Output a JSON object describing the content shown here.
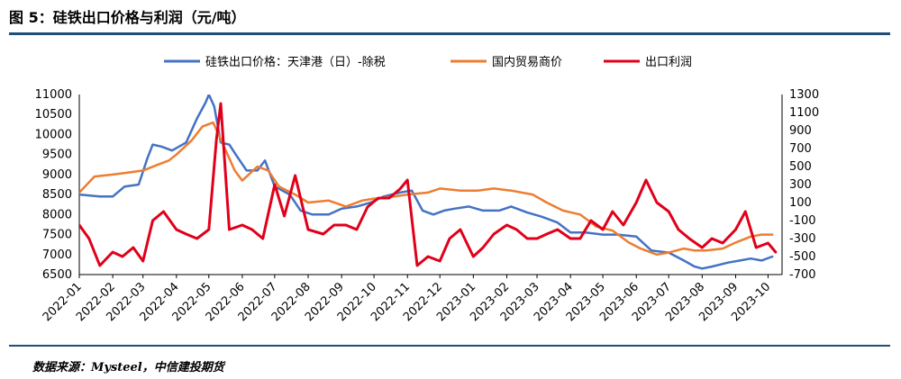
{
  "header": {
    "title": "图 5：硅铁出口价格与利润（元/吨）"
  },
  "footer": {
    "source": "数据来源：Mysteel，中信建投期货"
  },
  "colors": {
    "rule": "#1f4e79",
    "export_price": "#4472c4",
    "domestic_price": "#ed7d31",
    "profit": "#e0001a"
  },
  "chart_data": {
    "type": "line",
    "x_tick_labels": [
      "2022-01",
      "2022-02",
      "2022-03",
      "2022-04",
      "2022-05",
      "2022-06",
      "2022-07",
      "2022-08",
      "2022-09",
      "2022-10",
      "2022-11",
      "2022-12",
      "2023-01",
      "2023-02",
      "2023-03",
      "2023-04",
      "2023-05",
      "2023-06",
      "2023-07",
      "2023-08",
      "2023-09",
      "2023-10"
    ],
    "left_axis": {
      "range": [
        6500,
        11000
      ],
      "ticks": [
        "11000",
        "10500",
        "10000",
        "9500",
        "9000",
        "8500",
        "8000",
        "7500",
        "7000",
        "6500"
      ]
    },
    "right_axis": {
      "range": [
        -700,
        1300
      ],
      "ticks": [
        "1300",
        "1100",
        "900",
        "700",
        "500",
        "300",
        "100",
        "-100",
        "-300",
        "-500",
        "-700"
      ]
    },
    "series": [
      {
        "name": "硅铁出口价格：天津港（日）-除税",
        "axis": "left",
        "x": [
          "2022-01-01",
          "2022-01-20",
          "2022-02-01",
          "2022-02-12",
          "2022-02-25",
          "2022-03-05",
          "2022-03-10",
          "2022-03-18",
          "2022-03-28",
          "2022-04-10",
          "2022-04-20",
          "2022-04-28",
          "2022-05-01",
          "2022-05-06",
          "2022-05-12",
          "2022-05-20",
          "2022-05-26",
          "2022-06-05",
          "2022-06-15",
          "2022-06-22",
          "2022-07-01",
          "2022-07-15",
          "2022-07-25",
          "2022-08-05",
          "2022-08-20",
          "2022-09-01",
          "2022-09-15",
          "2022-09-28",
          "2022-10-10",
          "2022-10-25",
          "2022-11-05",
          "2022-11-15",
          "2022-11-25",
          "2022-12-05",
          "2022-12-15",
          "2022-12-28",
          "2023-01-10",
          "2023-01-25",
          "2023-02-05",
          "2023-02-20",
          "2023-03-05",
          "2023-03-20",
          "2023-04-01",
          "2023-04-15",
          "2023-05-01",
          "2023-05-15",
          "2023-06-01",
          "2023-06-15",
          "2023-07-01",
          "2023-07-15",
          "2023-07-25",
          "2023-08-01",
          "2023-08-10",
          "2023-08-25",
          "2023-09-05",
          "2023-09-15",
          "2023-09-25",
          "2023-10-05"
        ],
        "y": [
          8500,
          8450,
          8450,
          8700,
          8750,
          9400,
          9750,
          9700,
          9600,
          9800,
          10400,
          10800,
          11000,
          10700,
          9800,
          9750,
          9500,
          9100,
          9100,
          9350,
          8700,
          8500,
          8100,
          8000,
          8000,
          8150,
          8200,
          8300,
          8450,
          8550,
          8600,
          8100,
          8000,
          8100,
          8150,
          8200,
          8100,
          8100,
          8200,
          8050,
          7950,
          7800,
          7550,
          7550,
          7500,
          7500,
          7450,
          7100,
          7050,
          6850,
          6700,
          6650,
          6700,
          6800,
          6850,
          6900,
          6850,
          6950
        ]
      },
      {
        "name": "国内贸易商价",
        "axis": "left",
        "x": [
          "2022-01-01",
          "2022-01-15",
          "2022-02-01",
          "2022-02-15",
          "2022-03-01",
          "2022-03-15",
          "2022-03-25",
          "2022-04-01",
          "2022-04-15",
          "2022-04-25",
          "2022-05-05",
          "2022-05-15",
          "2022-05-25",
          "2022-06-01",
          "2022-06-15",
          "2022-06-25",
          "2022-07-05",
          "2022-07-20",
          "2022-08-01",
          "2022-08-20",
          "2022-09-05",
          "2022-09-20",
          "2022-10-01",
          "2022-10-20",
          "2022-11-01",
          "2022-11-20",
          "2022-12-01",
          "2022-12-20",
          "2023-01-05",
          "2023-01-20",
          "2023-02-05",
          "2023-02-25",
          "2023-03-10",
          "2023-03-25",
          "2023-04-10",
          "2023-04-25",
          "2023-05-10",
          "2023-05-25",
          "2023-06-05",
          "2023-06-20",
          "2023-07-01",
          "2023-07-15",
          "2023-07-25",
          "2023-08-05",
          "2023-08-20",
          "2023-09-01",
          "2023-09-15",
          "2023-09-25",
          "2023-10-05"
        ],
        "y": [
          8550,
          8950,
          9000,
          9050,
          9100,
          9250,
          9350,
          9500,
          9850,
          10200,
          10300,
          9700,
          9100,
          8850,
          9200,
          9100,
          8700,
          8500,
          8300,
          8350,
          8200,
          8350,
          8400,
          8450,
          8500,
          8550,
          8650,
          8600,
          8600,
          8650,
          8600,
          8500,
          8300,
          8100,
          8000,
          7700,
          7600,
          7300,
          7150,
          7000,
          7050,
          7150,
          7100,
          7100,
          7150,
          7300,
          7450,
          7500,
          7500
        ]
      },
      {
        "name": "出口利润",
        "axis": "right",
        "x": [
          "2022-01-01",
          "2022-01-10",
          "2022-01-20",
          "2022-02-01",
          "2022-02-10",
          "2022-02-20",
          "2022-03-01",
          "2022-03-10",
          "2022-03-20",
          "2022-04-01",
          "2022-04-10",
          "2022-04-20",
          "2022-05-01",
          "2022-05-08",
          "2022-05-12",
          "2022-05-20",
          "2022-06-01",
          "2022-06-10",
          "2022-06-20",
          "2022-07-01",
          "2022-07-10",
          "2022-07-20",
          "2022-08-01",
          "2022-08-15",
          "2022-08-25",
          "2022-09-05",
          "2022-09-15",
          "2022-09-25",
          "2022-10-05",
          "2022-10-15",
          "2022-10-25",
          "2022-11-01",
          "2022-11-10",
          "2022-11-20",
          "2022-12-01",
          "2022-12-10",
          "2022-12-20",
          "2023-01-01",
          "2023-01-10",
          "2023-01-20",
          "2023-02-01",
          "2023-02-10",
          "2023-02-20",
          "2023-03-01",
          "2023-03-10",
          "2023-03-20",
          "2023-04-01",
          "2023-04-10",
          "2023-04-20",
          "2023-05-01",
          "2023-05-10",
          "2023-05-20",
          "2023-06-01",
          "2023-06-10",
          "2023-06-20",
          "2023-07-01",
          "2023-07-10",
          "2023-07-20",
          "2023-08-01",
          "2023-08-10",
          "2023-08-20",
          "2023-09-01",
          "2023-09-10",
          "2023-09-20",
          "2023-10-01",
          "2023-10-08"
        ],
        "y": [
          -150,
          -300,
          -600,
          -450,
          -500,
          -400,
          -550,
          -100,
          0,
          -200,
          -250,
          -300,
          -200,
          800,
          1200,
          -200,
          -150,
          -200,
          -300,
          300,
          -50,
          400,
          -200,
          -250,
          -150,
          -150,
          -200,
          50,
          150,
          150,
          250,
          350,
          -600,
          -500,
          -550,
          -300,
          -200,
          -500,
          -400,
          -250,
          -150,
          -200,
          -300,
          -300,
          -250,
          -200,
          -300,
          -300,
          -100,
          -200,
          0,
          -150,
          100,
          350,
          100,
          0,
          -200,
          -300,
          -400,
          -300,
          -350,
          -200,
          0,
          -400,
          -350,
          -450
        ]
      }
    ],
    "legend_position": "top",
    "grid": false
  }
}
